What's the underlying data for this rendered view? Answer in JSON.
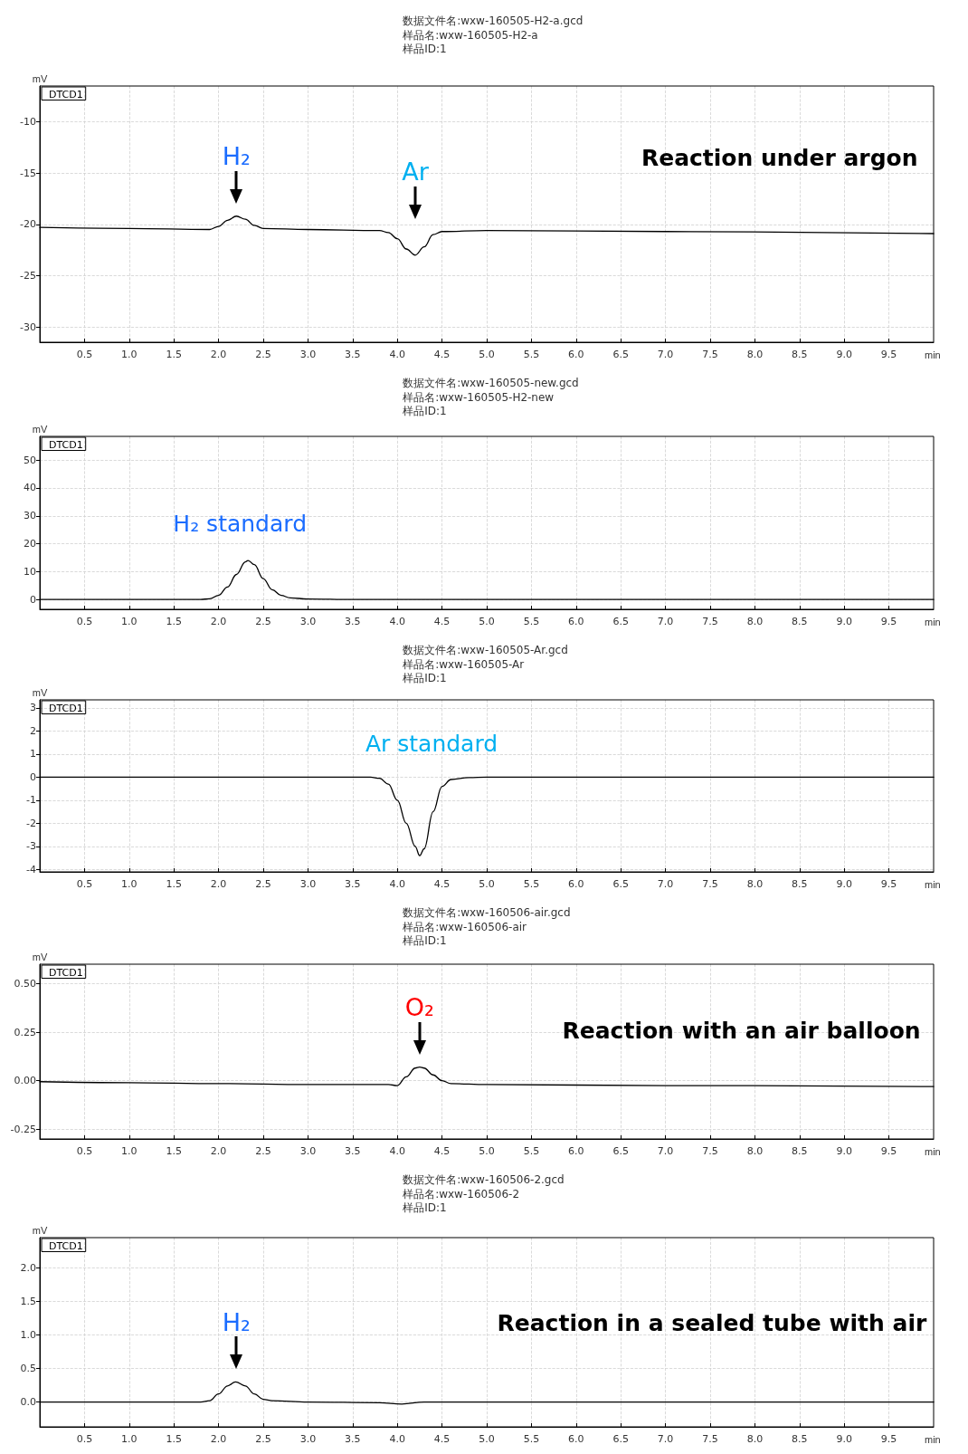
{
  "chart_data": [
    {
      "type": "line",
      "title": "数据文件名:wxw-160505-H2-a.gcd",
      "subtitle": "样品名:wxw-160505-H2-a\n样品ID:1",
      "xlabel": "min",
      "ylabel": "mV",
      "xlim": [
        0,
        10
      ],
      "ylim": [
        -31.5,
        -6.5
      ],
      "xticks": [
        0.5,
        {
          "value": 1,
          "label": "1.0"
        },
        1.5,
        {
          "value": 2,
          "label": "2.0"
        },
        2.5,
        {
          "value": 3,
          "label": "3.0"
        },
        3.5,
        {
          "value": 4,
          "label": "4.0"
        },
        4.5,
        {
          "value": 5,
          "label": "5.0"
        },
        5.5,
        {
          "value": 6,
          "label": "6.0"
        },
        6.5,
        {
          "value": 7,
          "label": "7.0"
        },
        7.5,
        {
          "value": 8,
          "label": "8.0"
        },
        8.5,
        {
          "value": 9,
          "label": "9.0"
        },
        9.5
      ],
      "yticks": [
        -30,
        -25,
        -20,
        -15,
        -10
      ],
      "grid": true,
      "legend": "top left",
      "marker": "none",
      "line_style": "solid",
      "series": [
        {
          "name": "DTCD1",
          "color": "#000000",
          "x": [
            0,
            1,
            1.9,
            2.0,
            2.1,
            2.2,
            2.3,
            2.4,
            2.5,
            3.0,
            3.8,
            3.9,
            4.0,
            4.1,
            4.2,
            4.3,
            4.4,
            4.5,
            5,
            7,
            10
          ],
          "values": [
            -20.3,
            -20.4,
            -20.5,
            -20.2,
            -19.6,
            -19.2,
            -19.5,
            -20.1,
            -20.4,
            -20.5,
            -20.6,
            -20.8,
            -21.4,
            -22.4,
            -23.0,
            -22.2,
            -21.0,
            -20.7,
            -20.6,
            -20.7,
            -20.9
          ]
        }
      ],
      "annotations": [
        {
          "text": "H₂",
          "x": 2.2,
          "y": -19.2
        },
        {
          "text": "Ar",
          "x": 4.2,
          "y": -23.0
        },
        "Reaction under argon"
      ]
    },
    {
      "type": "line",
      "title": "数据文件名:wxw-160505-new.gcd",
      "subtitle": "样品名:wxw-160505-H2-new\n样品ID:1",
      "xlabel": "min",
      "ylabel": "mV",
      "xlim": [
        0,
        10
      ],
      "ylim": [
        -3.5,
        58.5
      ],
      "xticks": [
        0.5,
        {
          "value": 1,
          "label": "1.0"
        },
        1.5,
        {
          "value": 2,
          "label": "2.0"
        },
        2.5,
        {
          "value": 3,
          "label": "3.0"
        },
        3.5,
        {
          "value": 4,
          "label": "4.0"
        },
        4.5,
        {
          "value": 5,
          "label": "5.0"
        },
        5.5,
        {
          "value": 6,
          "label": "6.0"
        },
        6.5,
        {
          "value": 7,
          "label": "7.0"
        },
        7.5,
        {
          "value": 8,
          "label": "8.0"
        },
        8.5,
        {
          "value": 9,
          "label": "9.0"
        },
        9.5
      ],
      "yticks": [
        0,
        10,
        20,
        30,
        40,
        50
      ],
      "grid": true,
      "legend": "top left",
      "marker": "none",
      "line_style": "solid",
      "series": [
        {
          "name": "DTCD1",
          "color": "#000000",
          "x": [
            0,
            1.8,
            1.9,
            2.0,
            2.1,
            2.2,
            2.3,
            2.33,
            2.4,
            2.5,
            2.6,
            2.7,
            2.8,
            3.0,
            3.5,
            10
          ],
          "values": [
            0,
            0,
            0.3,
            1.5,
            4.5,
            9,
            13.5,
            14,
            12.5,
            7.5,
            3.5,
            1.5,
            0.6,
            0.2,
            0,
            0
          ]
        }
      ],
      "annotations": [
        "H₂ standard"
      ]
    },
    {
      "type": "line",
      "title": "数据文件名:wxw-160505-Ar.gcd",
      "subtitle": "样品名:wxw-160505-Ar\n样品ID:1",
      "xlabel": "min",
      "ylabel": "mV",
      "xlim": [
        0,
        10
      ],
      "ylim": [
        -4.1,
        3.35
      ],
      "xticks": [
        0.5,
        {
          "value": 1,
          "label": "1.0"
        },
        1.5,
        {
          "value": 2,
          "label": "2.0"
        },
        2.5,
        {
          "value": 3,
          "label": "3.0"
        },
        3.5,
        {
          "value": 4,
          "label": "4.0"
        },
        4.5,
        {
          "value": 5,
          "label": "5.0"
        },
        5.5,
        {
          "value": 6,
          "label": "6.0"
        },
        6.5,
        {
          "value": 7,
          "label": "7.0"
        },
        7.5,
        {
          "value": 8,
          "label": "8.0"
        },
        8.5,
        {
          "value": 9,
          "label": "9.0"
        },
        9.5
      ],
      "yticks": [
        -4,
        -3,
        -2,
        -1,
        0,
        1,
        2,
        3
      ],
      "grid": true,
      "legend": "top left",
      "marker": "none",
      "line_style": "solid",
      "series": [
        {
          "name": "DTCD1",
          "color": "#000000",
          "x": [
            0,
            3.7,
            3.8,
            3.9,
            4.0,
            4.1,
            4.2,
            4.25,
            4.3,
            4.4,
            4.5,
            4.6,
            4.8,
            5,
            10
          ],
          "values": [
            0,
            0,
            -0.05,
            -0.3,
            -1.0,
            -2.0,
            -3.0,
            -3.4,
            -3.1,
            -1.5,
            -0.4,
            -0.1,
            -0.02,
            0,
            0
          ]
        }
      ],
      "annotations": [
        "Ar standard"
      ]
    },
    {
      "type": "line",
      "title": "数据文件名:wxw-160506-air.gcd",
      "subtitle": "样品名:wxw-160506-air\n样品ID:1",
      "xlabel": "min",
      "ylabel": "mV",
      "xlim": [
        0,
        10
      ],
      "ylim": [
        -0.3,
        0.6
      ],
      "xticks": [
        0.5,
        {
          "value": 1,
          "label": "1.0"
        },
        1.5,
        {
          "value": 2,
          "label": "2.0"
        },
        2.5,
        {
          "value": 3,
          "label": "3.0"
        },
        3.5,
        {
          "value": 4,
          "label": "4.0"
        },
        4.5,
        {
          "value": 5,
          "label": "5.0"
        },
        5.5,
        {
          "value": 6,
          "label": "6.0"
        },
        6.5,
        {
          "value": 7,
          "label": "7.0"
        },
        7.5,
        {
          "value": 8,
          "label": "8.0"
        },
        8.5,
        {
          "value": 9,
          "label": "9.0"
        },
        9.5
      ],
      "yticks": [
        {
          "value": -0.25,
          "label": "-0.25"
        },
        {
          "value": 0,
          "label": "0.00"
        },
        {
          "value": 0.25,
          "label": "0.25"
        },
        {
          "value": 0.5,
          "label": "0.50"
        }
      ],
      "grid": true,
      "legend": "top left",
      "marker": "none",
      "line_style": "solid",
      "series": [
        {
          "name": "DTCD1",
          "color": "#000000",
          "x": [
            0,
            1,
            2,
            3,
            3.9,
            4.0,
            4.1,
            4.2,
            4.25,
            4.3,
            4.4,
            4.5,
            4.6,
            5,
            7,
            10
          ],
          "values": [
            -0.005,
            -0.01,
            -0.015,
            -0.02,
            -0.02,
            -0.025,
            0.02,
            0.065,
            0.07,
            0.065,
            0.03,
            0.0,
            -0.015,
            -0.02,
            -0.025,
            -0.03
          ]
        }
      ],
      "annotations": [
        {
          "text": "O₂",
          "x": 4.25,
          "y": 0.07
        },
        "Reaction with an air balloon"
      ]
    },
    {
      "type": "line",
      "title": "数据文件名:wxw-160506-2.gcd",
      "subtitle": "样品名:wxw-160506-2\n样品ID:1",
      "xlabel": "min",
      "ylabel": "mV",
      "xlim": [
        0,
        10
      ],
      "ylim": [
        -0.37,
        2.45
      ],
      "xticks": [
        0.5,
        {
          "value": 1,
          "label": "1.0"
        },
        1.5,
        {
          "value": 2,
          "label": "2.0"
        },
        2.5,
        {
          "value": 3,
          "label": "3.0"
        },
        3.5,
        {
          "value": 4,
          "label": "4.0"
        },
        4.5,
        {
          "value": 5,
          "label": "5.0"
        },
        5.5,
        {
          "value": 6,
          "label": "6.0"
        },
        6.5,
        {
          "value": 7,
          "label": "7.0"
        },
        7.5,
        {
          "value": 8,
          "label": "8.0"
        },
        8.5,
        {
          "value": 9,
          "label": "9.0"
        },
        9.5
      ],
      "yticks": [
        {
          "value": 0,
          "label": "0.0"
        },
        0.5,
        {
          "value": 1,
          "label": "1.0"
        },
        1.5,
        {
          "value": 2,
          "label": "2.0"
        }
      ],
      "grid": true,
      "legend": "top left",
      "marker": "none",
      "line_style": "solid",
      "series": [
        {
          "name": "DTCD1",
          "color": "#000000",
          "x": [
            0,
            1.8,
            1.9,
            2.0,
            2.1,
            2.19,
            2.3,
            2.4,
            2.5,
            2.6,
            3,
            3.8,
            4.05,
            4.3,
            5,
            10
          ],
          "values": [
            0,
            0,
            0.02,
            0.12,
            0.24,
            0.3,
            0.24,
            0.12,
            0.04,
            0.02,
            0,
            -0.01,
            -0.03,
            0,
            0,
            0
          ]
        }
      ],
      "annotations": [
        {
          "text": "H₂",
          "x": 2.2,
          "y": 0.3
        },
        "Reaction in a sealed tube with air"
      ]
    }
  ]
}
